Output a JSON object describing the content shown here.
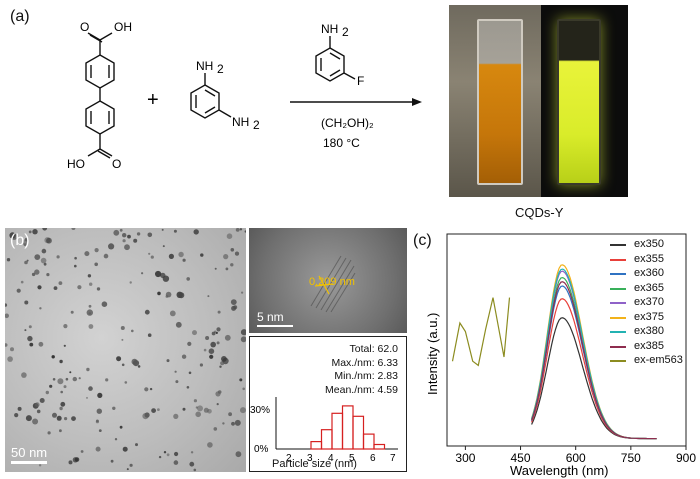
{
  "panel_a": {
    "label": "(a)",
    "reactant1_top": "OH",
    "reactant1_bottom": "HO",
    "plus": "+",
    "reactant2_top": "NH",
    "reactant2_top_sub": "2",
    "reactant2_right": "NH",
    "reactant2_right_sub": "2",
    "reagent_top": "NH",
    "reagent_top_sub": "2",
    "reagent_f": "F",
    "solvent": "(CH₂OH)₂",
    "temperature": "180 °C",
    "photo_caption": "CQDs-Y"
  },
  "panel_b": {
    "label": "(b)",
    "tem_scale": "50 nm",
    "hr_scale": "5 nm",
    "lattice": "0.209 nm",
    "hist_stats": [
      "Total: 62.0",
      "Max./nm: 6.33",
      "Min./nm: 2.83",
      "Mean./nm: 4.59"
    ],
    "hist_xlabel": "Particle size (nm)",
    "hist_xticks": [
      "2",
      "3",
      "4",
      "5",
      "6",
      "7"
    ],
    "hist_yticks": [
      "0%",
      "30%"
    ]
  },
  "panel_c": {
    "label": "(c)",
    "ylabel": "Intensity (a.u.)",
    "xlabel": "Wavelength (nm)",
    "xticks": [
      "300",
      "450",
      "600",
      "750",
      "900"
    ],
    "legend": [
      {
        "name": "ex350",
        "color": "#333333"
      },
      {
        "name": "ex355",
        "color": "#e8403a"
      },
      {
        "name": "ex360",
        "color": "#2f72c2"
      },
      {
        "name": "ex365",
        "color": "#38b05a"
      },
      {
        "name": "ex370",
        "color": "#8f62c8"
      },
      {
        "name": "ex375",
        "color": "#f2b21a"
      },
      {
        "name": "ex380",
        "color": "#23b2b2"
      },
      {
        "name": "ex385",
        "color": "#8e2d4f"
      },
      {
        "name": "ex-em563",
        "color": "#8c8c20"
      }
    ]
  },
  "chart_data": [
    {
      "type": "bar",
      "xlabel": "Particle size (nm)",
      "ylabel": "",
      "categories": [
        "3.25",
        "3.75",
        "4.25",
        "4.75",
        "5.25",
        "5.75",
        "6.25"
      ],
      "values": [
        5,
        13,
        24,
        29,
        22,
        10,
        3
      ],
      "ylim": [
        0,
        35
      ],
      "xlim": [
        2,
        7
      ]
    },
    {
      "type": "line",
      "xlabel": "Wavelength (nm)",
      "ylabel": "Intensity (a.u.)",
      "xlim": [
        250,
        900
      ],
      "ylim": [
        0,
        1
      ],
      "grid": false,
      "legend_position": "top-right",
      "emission_peak_nm": 563,
      "series": [
        {
          "name": "ex350",
          "peak": 0.57
        },
        {
          "name": "ex355",
          "peak": 0.66
        },
        {
          "name": "ex360",
          "peak": 0.72
        },
        {
          "name": "ex365",
          "peak": 0.76
        },
        {
          "name": "ex370",
          "peak": 0.79
        },
        {
          "name": "ex375",
          "peak": 0.82
        },
        {
          "name": "ex380",
          "peak": 0.8
        },
        {
          "name": "ex385",
          "peak": 0.74
        },
        {
          "name": "ex-em563",
          "x": [
            265,
            285,
            300,
            320,
            335,
            355,
            375,
            390,
            405,
            420
          ],
          "y": [
            0.4,
            0.58,
            0.54,
            0.4,
            0.38,
            0.55,
            0.7,
            0.56,
            0.42,
            0.7
          ]
        }
      ]
    }
  ]
}
